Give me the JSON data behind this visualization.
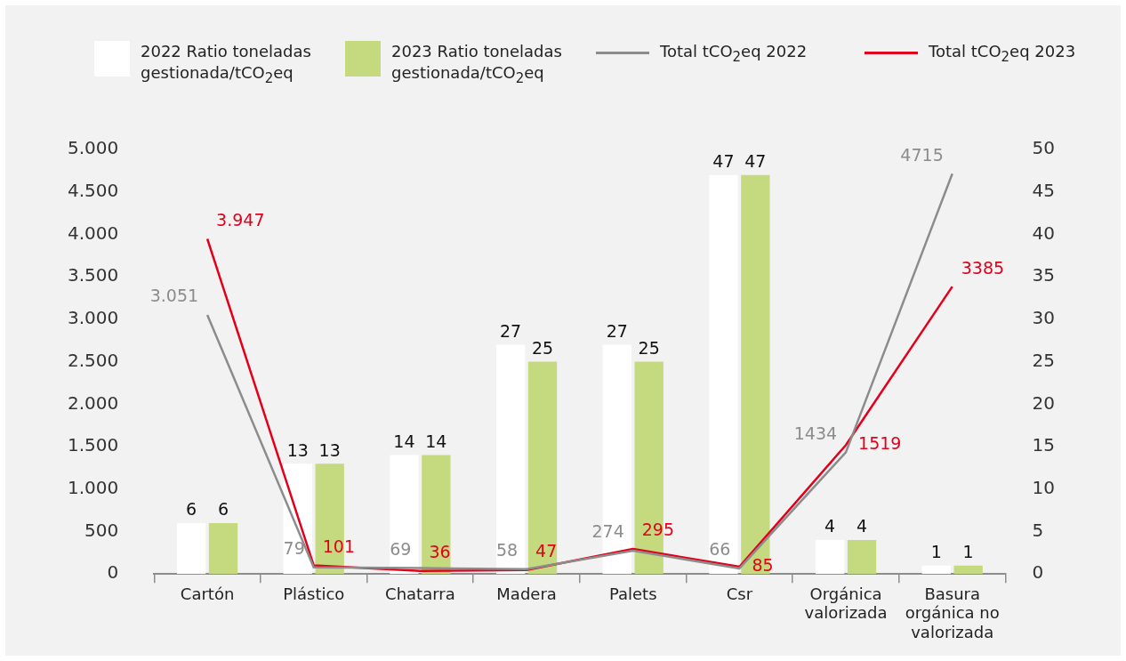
{
  "chart_data": {
    "type": "bar",
    "categories": [
      "Cartón",
      "Plástico",
      "Chatarra",
      "Madera",
      "Palets",
      "Csr",
      "Orgánica valorizada",
      "Basura orgánica no valorizada"
    ],
    "series": [
      {
        "name": "2022 Ratio toneladas gestionada/tCO$_{2}$eq",
        "axis": "y2",
        "color": "#ffffff",
        "values": [
          6,
          13,
          14,
          27,
          27,
          47,
          4,
          1
        ],
        "value_labels": [
          "6",
          "13",
          "14",
          "27",
          "27",
          "47",
          "4",
          "1"
        ]
      },
      {
        "name": "2023 Ratio toneladas gestionada/tCO$_{2}$eq",
        "axis": "y2",
        "color": "#c5d97e",
        "values": [
          6,
          13,
          14,
          25,
          25,
          47,
          4,
          1
        ],
        "value_labels": [
          "6",
          "13",
          "14",
          "25",
          "25",
          "47",
          "4",
          "1"
        ]
      },
      {
        "name": "Total tCO$_{2}$eq 2022",
        "type": "line",
        "axis": "y",
        "color": "#8c8c8c",
        "values": [
          3051,
          79,
          69,
          58,
          274,
          66,
          1434,
          4715
        ],
        "value_labels": [
          "3.051",
          "79",
          "69",
          "58",
          "274",
          "66",
          "1434",
          "4715"
        ]
      },
      {
        "name": "Total tCO$_{2}$eq 2023",
        "type": "line",
        "axis": "y",
        "color": "#e3001b",
        "values": [
          3947,
          101,
          36,
          47,
          295,
          85,
          1519,
          3385
        ],
        "value_labels": [
          "3.947",
          "101",
          "36",
          "47",
          "295",
          "85",
          "1519",
          "3385"
        ]
      }
    ],
    "ylim": [
      0,
      5000
    ],
    "yticks": [
      {
        "value": 0,
        "label": "0"
      },
      {
        "value": 500,
        "label": "500"
      },
      {
        "value": 1000,
        "label": "1.000"
      },
      {
        "value": 1500,
        "label": "1.500"
      },
      {
        "value": 2000,
        "label": "2.000"
      },
      {
        "value": 2500,
        "label": "2.500"
      },
      {
        "value": 3000,
        "label": "3.000"
      },
      {
        "value": 3500,
        "label": "3.500"
      },
      {
        "value": 4000,
        "label": "4.000"
      },
      {
        "value": 4500,
        "label": "4.500"
      },
      {
        "value": 5000,
        "label": "5.000"
      }
    ],
    "y2lim": [
      0,
      50
    ],
    "y2ticks": [
      0,
      5,
      10,
      15,
      20,
      25,
      30,
      35,
      40,
      45,
      50
    ],
    "legend": "top",
    "grid": false,
    "marker": "none"
  }
}
